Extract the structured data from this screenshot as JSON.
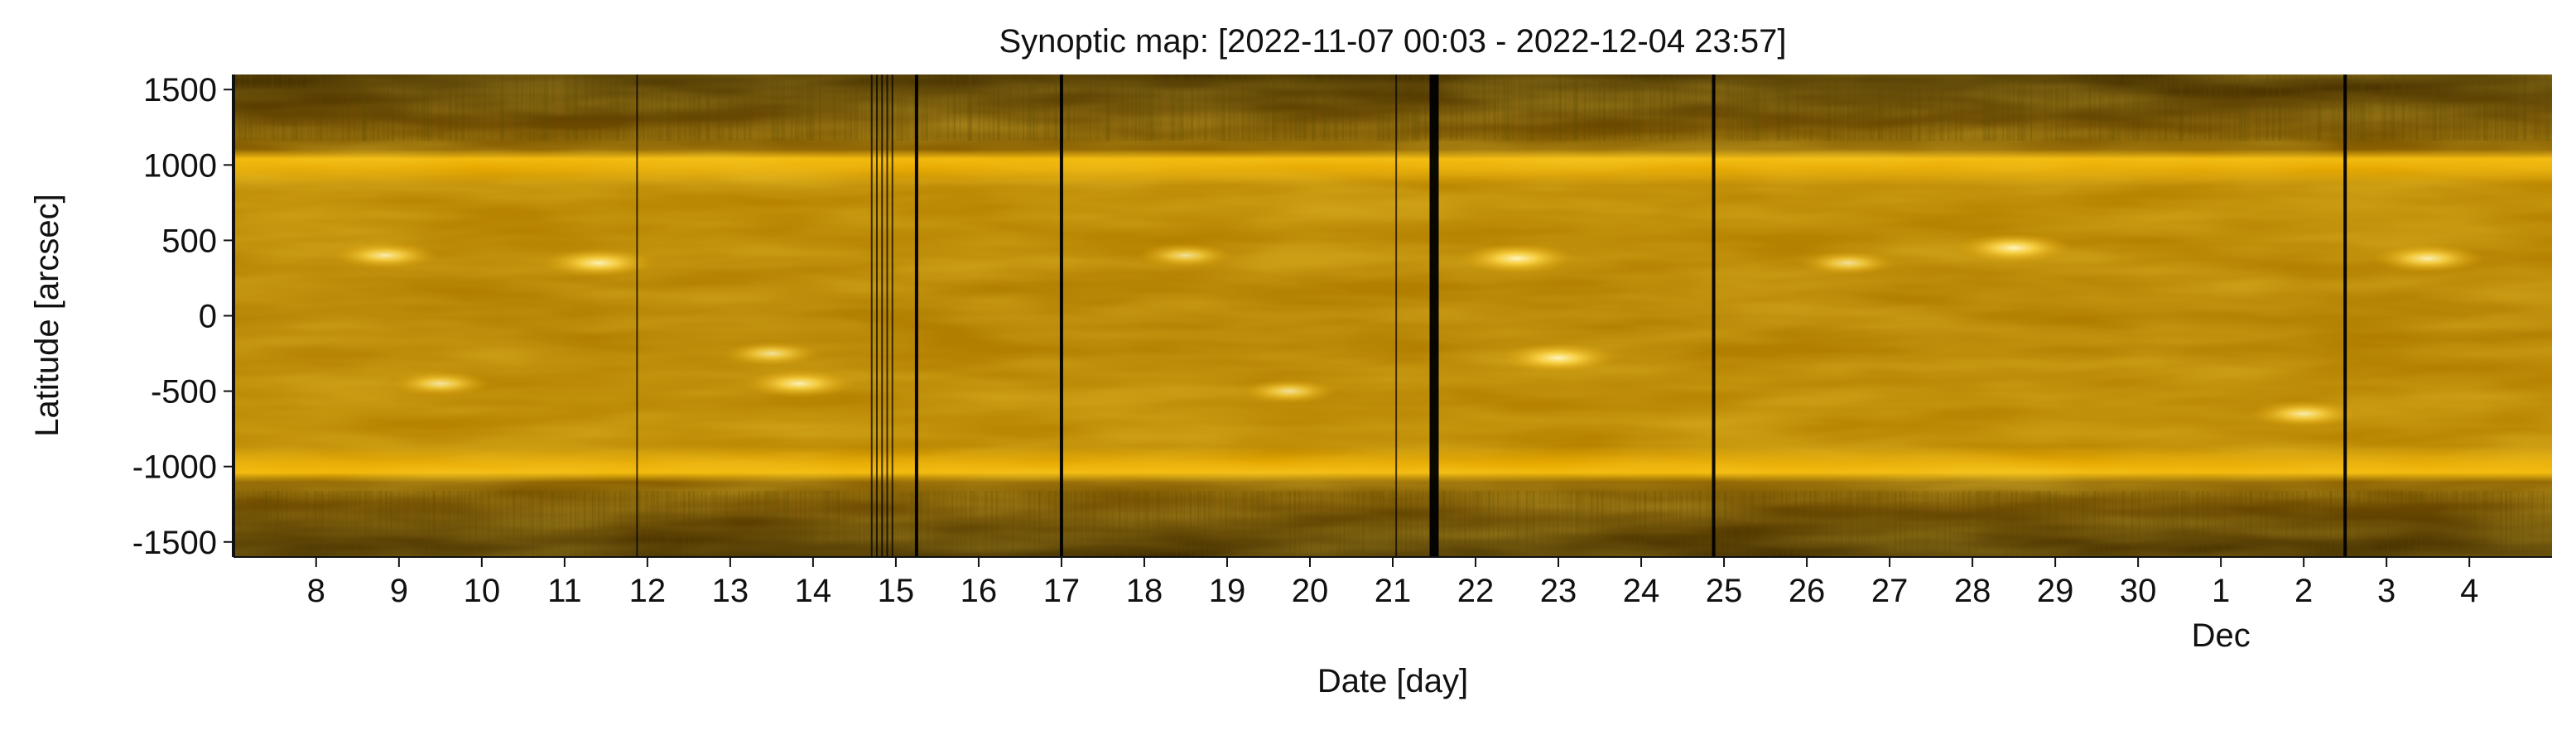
{
  "chart_data": {
    "type": "heatmap",
    "title": "Synoptic map: [2022-11-07 00:03 - 2022-12-04 23:57]",
    "xlabel": "Date [day]",
    "ylabel": "Latitude [arcsec]",
    "x_range": [
      "2022-11-07 00:03",
      "2022-12-04 23:57"
    ],
    "ylim": [
      -1600,
      1600
    ],
    "x_ticks": [
      {
        "date": "2022-11-08",
        "label": "8"
      },
      {
        "date": "2022-11-09",
        "label": "9"
      },
      {
        "date": "2022-11-10",
        "label": "10"
      },
      {
        "date": "2022-11-11",
        "label": "11"
      },
      {
        "date": "2022-11-12",
        "label": "12"
      },
      {
        "date": "2022-11-13",
        "label": "13"
      },
      {
        "date": "2022-11-14",
        "label": "14"
      },
      {
        "date": "2022-11-15",
        "label": "15"
      },
      {
        "date": "2022-11-16",
        "label": "16"
      },
      {
        "date": "2022-11-17",
        "label": "17"
      },
      {
        "date": "2022-11-18",
        "label": "18"
      },
      {
        "date": "2022-11-19",
        "label": "19"
      },
      {
        "date": "2022-11-20",
        "label": "20"
      },
      {
        "date": "2022-11-21",
        "label": "21"
      },
      {
        "date": "2022-11-22",
        "label": "22"
      },
      {
        "date": "2022-11-23",
        "label": "23"
      },
      {
        "date": "2022-11-24",
        "label": "24"
      },
      {
        "date": "2022-11-25",
        "label": "25"
      },
      {
        "date": "2022-11-26",
        "label": "26"
      },
      {
        "date": "2022-11-27",
        "label": "27"
      },
      {
        "date": "2022-11-28",
        "label": "28"
      },
      {
        "date": "2022-11-29",
        "label": "29"
      },
      {
        "date": "2022-11-30",
        "label": "30"
      },
      {
        "date": "2022-12-01",
        "label": "1"
      },
      {
        "date": "2022-12-02",
        "label": "2"
      },
      {
        "date": "2022-12-03",
        "label": "3"
      },
      {
        "date": "2022-12-04",
        "label": "4"
      }
    ],
    "x_secondary_label": {
      "date": "2022-12-01",
      "label": "Dec"
    },
    "y_ticks": [
      1500,
      1000,
      500,
      0,
      -500,
      -1000,
      -1500
    ],
    "limb_latitude": 975,
    "data_gaps": [
      {
        "date": "2022-11-11 21:00",
        "severity": "thin"
      },
      {
        "date": "2022-11-14 17:00",
        "severity": "thin"
      },
      {
        "date": "2022-11-14 18:30",
        "severity": "thin"
      },
      {
        "date": "2022-11-14 20:00",
        "severity": "thin"
      },
      {
        "date": "2022-11-14 21:30",
        "severity": "thin"
      },
      {
        "date": "2022-11-14 23:00",
        "severity": "thin"
      },
      {
        "date": "2022-11-15 06:00",
        "severity": "medium"
      },
      {
        "date": "2022-11-17 00:00",
        "severity": "medium"
      },
      {
        "date": "2022-11-21 01:00",
        "severity": "thin"
      },
      {
        "date": "2022-11-21 12:00",
        "severity": "wide"
      },
      {
        "date": "2022-11-24 21:00",
        "severity": "medium"
      },
      {
        "date": "2022-12-02 12:00",
        "severity": "medium"
      }
    ],
    "bright_regions": [
      {
        "date": "2022-11-08 20:00",
        "lat": 400,
        "intensity": 0.8
      },
      {
        "date": "2022-11-09 12:00",
        "lat": -450,
        "intensity": 0.7
      },
      {
        "date": "2022-11-11 10:00",
        "lat": 350,
        "intensity": 0.9
      },
      {
        "date": "2022-11-13 20:00",
        "lat": -450,
        "intensity": 0.9
      },
      {
        "date": "2022-11-13 12:00",
        "lat": -250,
        "intensity": 0.6
      },
      {
        "date": "2022-11-18 12:00",
        "lat": 400,
        "intensity": 0.6
      },
      {
        "date": "2022-11-19 18:00",
        "lat": -500,
        "intensity": 0.6
      },
      {
        "date": "2022-11-22 12:00",
        "lat": 380,
        "intensity": 1.0
      },
      {
        "date": "2022-11-23 00:00",
        "lat": -280,
        "intensity": 1.0
      },
      {
        "date": "2022-11-26 12:00",
        "lat": 350,
        "intensity": 0.6
      },
      {
        "date": "2022-11-28 12:00",
        "lat": 450,
        "intensity": 1.0
      },
      {
        "date": "2022-12-02 00:00",
        "lat": -650,
        "intensity": 0.8
      },
      {
        "date": "2022-12-03 12:00",
        "lat": 380,
        "intensity": 0.9
      }
    ],
    "colors": {
      "background_dark": "#4d3300",
      "disk": "#b98500",
      "limb": "#f2b80a",
      "highlight": "#fff4b8",
      "gap": "#000000",
      "axes": "#111111"
    }
  }
}
